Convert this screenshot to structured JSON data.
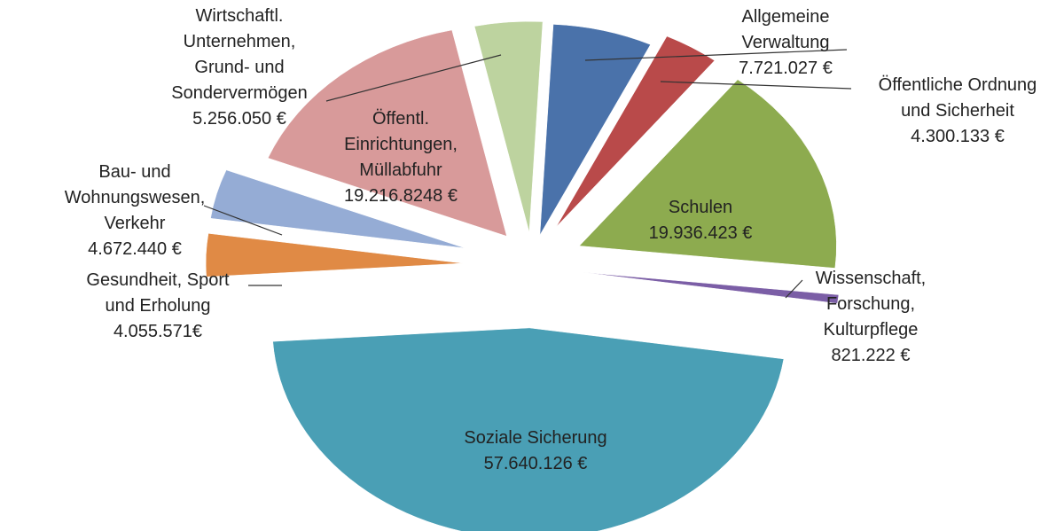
{
  "chart_data": {
    "type": "pie",
    "exploded": true,
    "slices": [
      {
        "name": "Allgemeine Verwaltung",
        "label_lines": [
          "Allgemeine",
          "Verwaltung",
          "7.721.027 €"
        ],
        "value": 7721027,
        "color": "#4a72aa"
      },
      {
        "name": "Öffentliche Ordnung und Sicherheit",
        "label_lines": [
          "Öffentliche Ordnung",
          "und Sicherheit",
          "4.300.133 €"
        ],
        "value": 4300133,
        "color": "#b94a4a"
      },
      {
        "name": "Schulen",
        "label_lines": [
          "Schulen",
          "19.936.423 €"
        ],
        "value": 19936423,
        "color": "#8dab4f"
      },
      {
        "name": "Wissenschaft, Forschung, Kulturpflege",
        "label_lines": [
          "Wissenschaft,",
          "Forschung,",
          "Kulturpflege",
          "821.222 €"
        ],
        "value": 821222,
        "color": "#7b5ea6"
      },
      {
        "name": "Soziale Sicherung",
        "label_lines": [
          "Soziale Sicherung",
          "57.640.126 €"
        ],
        "value": 57640126,
        "color": "#4a9fb5"
      },
      {
        "name": "Gesundheit, Sport und Erholung",
        "label_lines": [
          "Gesundheit, Sport",
          "und Erholung",
          "4.055.571€"
        ],
        "value": 4055571,
        "color": "#e08a45"
      },
      {
        "name": "Bau- und Wohnungswesen, Verkehr",
        "label_lines": [
          "Bau- und",
          "Wohnungswesen,",
          "Verkehr",
          "4.672.440 €"
        ],
        "value": 4672440,
        "color": "#95acd5"
      },
      {
        "name": "Öffentl. Einrichtungen, Müllabfuhr",
        "label_lines": [
          "Öffentl.",
          "Einrichtungen,",
          "Müllabfuhr",
          "19.216.8248 €"
        ],
        "value": 19216824.8,
        "color": "#d89a9a"
      },
      {
        "name": "Wirtschaftl. Unternehmen, Grund- und Sondervermögen",
        "label_lines": [
          "Wirtschaftl.",
          "Unternehmen,",
          "Grund- und",
          "Sondervermögen",
          "5.256.050  €"
        ],
        "value": 5256050,
        "color": "#bdd39f"
      }
    ]
  }
}
